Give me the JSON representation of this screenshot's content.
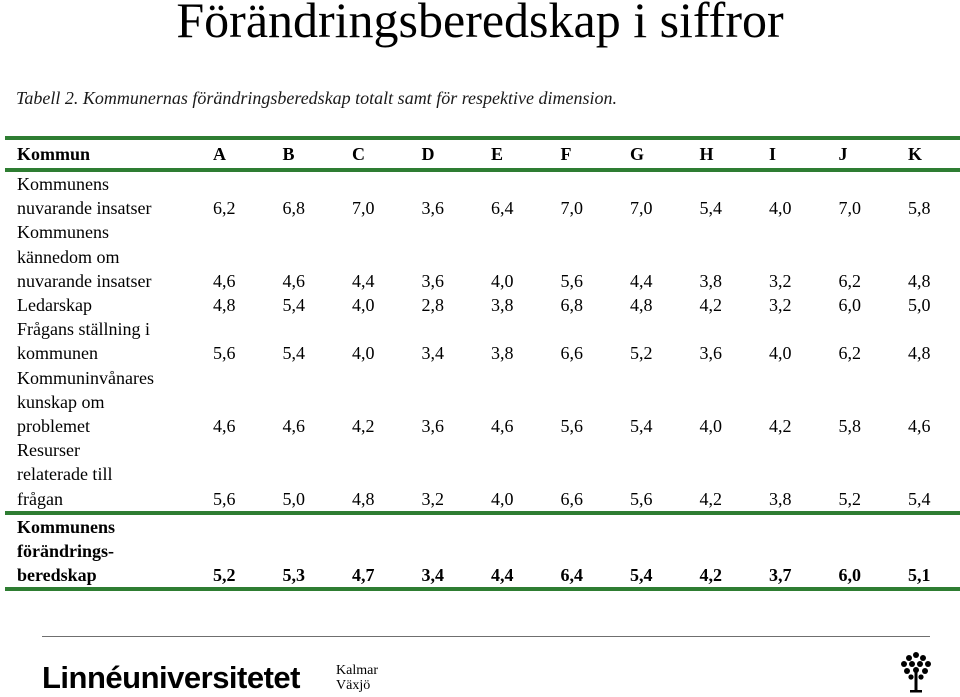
{
  "title": "Förändringsberedskap i siffror",
  "caption": "Tabell 2. Kommunernas förändringsberedskap totalt samt för respektive dimension.",
  "table": {
    "header_label": "Kommun",
    "columns": [
      "A",
      "B",
      "C",
      "D",
      "E",
      "F",
      "G",
      "H",
      "I",
      "J",
      "K"
    ],
    "rows": [
      {
        "label_lines": [
          "Kommunens",
          "nuvarande insatser"
        ],
        "values": [
          "6,2",
          "6,8",
          "7,0",
          "3,6",
          "6,4",
          "7,0",
          "7,0",
          "5,4",
          "4,0",
          "7,0",
          "5,8"
        ]
      },
      {
        "label_lines": [
          "Kommunens",
          "kännedom om",
          "nuvarande insatser"
        ],
        "values": [
          "4,6",
          "4,6",
          "4,4",
          "3,6",
          "4,0",
          "5,6",
          "4,4",
          "3,8",
          "3,2",
          "6,2",
          "4,8"
        ]
      },
      {
        "label_lines": [
          "Ledarskap"
        ],
        "values": [
          "4,8",
          "5,4",
          "4,0",
          "2,8",
          "3,8",
          "6,8",
          "4,8",
          "4,2",
          "3,2",
          "6,0",
          "5,0"
        ]
      },
      {
        "label_lines": [
          "Frågans ställning i",
          "kommunen"
        ],
        "values": [
          "5,6",
          "5,4",
          "4,0",
          "3,4",
          "3,8",
          "6,6",
          "5,2",
          "3,6",
          "4,0",
          "6,2",
          "4,8"
        ]
      },
      {
        "label_lines": [
          "Kommuninvånares",
          "kunskap om",
          "problemet"
        ],
        "values": [
          "4,6",
          "4,6",
          "4,2",
          "3,6",
          "4,6",
          "5,6",
          "5,4",
          "4,0",
          "4,2",
          "5,8",
          "4,6"
        ]
      },
      {
        "label_lines": [
          "Resurser",
          "relaterade till",
          "frågan"
        ],
        "values": [
          "5,6",
          "5,0",
          "4,8",
          "3,2",
          "4,0",
          "6,6",
          "5,6",
          "4,2",
          "3,8",
          "5,2",
          "5,4"
        ]
      }
    ],
    "total": {
      "label_lines": [
        "Kommunens",
        "förändrings-",
        "beredskap"
      ],
      "values": [
        "5,2",
        "5,3",
        "4,7",
        "3,4",
        "4,4",
        "6,4",
        "5,4",
        "4,2",
        "3,7",
        "6,0",
        "5,1"
      ]
    }
  },
  "footer": {
    "logo_text": "Linnéuniversitetet",
    "city1": "Kalmar",
    "city2": "Växjö",
    "icon": "tree-icon"
  },
  "colors": {
    "rule": "#2e7d32"
  }
}
